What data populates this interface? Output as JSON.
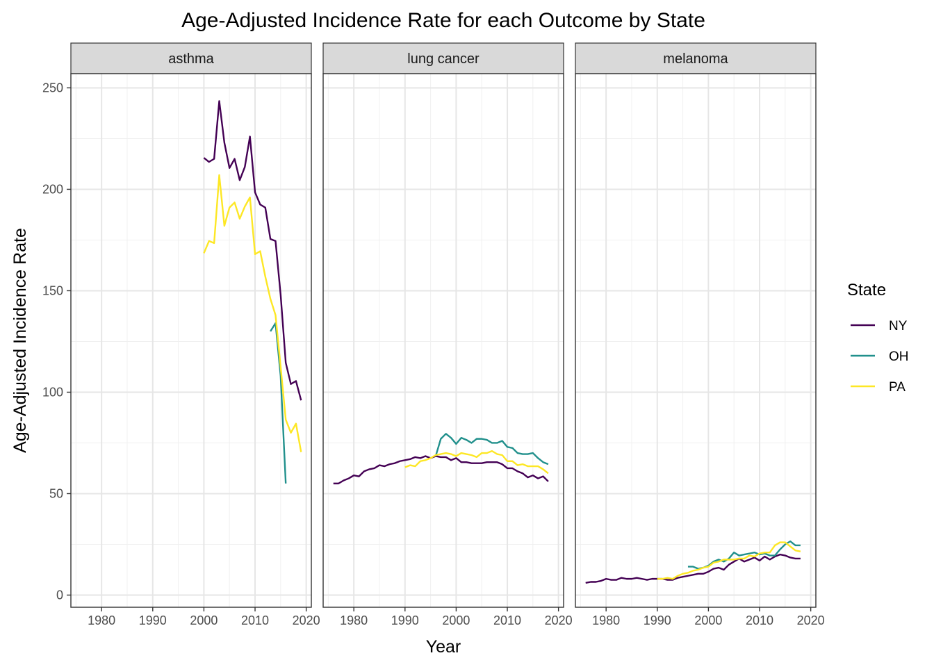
{
  "chart_data": {
    "type": "line",
    "title": "Age-Adjusted Incidence Rate for each Outcome by State",
    "xlabel": "Year",
    "ylabel": "Age-Adjusted Incidence Rate",
    "xlim": [
      1974,
      2021
    ],
    "ylim": [
      -6,
      257
    ],
    "x_ticks": [
      1980,
      1990,
      2000,
      2010,
      2020
    ],
    "y_ticks": [
      0,
      50,
      100,
      150,
      200,
      250
    ],
    "grid": true,
    "legend": {
      "title": "State",
      "position": "right",
      "entries": [
        {
          "name": "NY",
          "color": "#440154"
        },
        {
          "name": "OH",
          "color": "#21908C"
        },
        {
          "name": "PA",
          "color": "#FDE725"
        }
      ]
    },
    "panels": [
      {
        "label": "asthma",
        "series": [
          {
            "name": "NY",
            "color": "#440154",
            "x": [
              2000,
              2001,
              2002,
              2003,
              2004,
              2005,
              2006,
              2007,
              2008,
              2009,
              2010,
              2011,
              2012,
              2013,
              2014,
              2015,
              2016,
              2017,
              2018,
              2019
            ],
            "y": [
              215.5,
              213.5,
              215,
              243.5,
              223,
              210.5,
              215,
              204.5,
              211,
              226,
              198.5,
              192.5,
              191,
              175.5,
              174.5,
              148,
              114.5,
              104,
              105.5,
              96
            ]
          },
          {
            "name": "OH",
            "color": "#21908C",
            "x": [
              2013,
              2014,
              2015,
              2016
            ],
            "y": [
              130,
              134,
              108,
              55
            ]
          },
          {
            "name": "PA",
            "color": "#FDE725",
            "x": [
              2000,
              2001,
              2002,
              2003,
              2004,
              2005,
              2006,
              2007,
              2008,
              2009,
              2010,
              2011,
              2012,
              2013,
              2014,
              2015,
              2016,
              2017,
              2018,
              2019
            ],
            "y": [
              168.5,
              174.5,
              173.5,
              207,
              182,
              191,
              193.5,
              185.5,
              191.5,
              196,
              168,
              169.5,
              157,
              146,
              138,
              112.5,
              86.5,
              80,
              84.5,
              70.5
            ]
          }
        ]
      },
      {
        "label": "lung cancer",
        "series": [
          {
            "name": "NY",
            "color": "#440154",
            "x": [
              1976,
              1977,
              1978,
              1979,
              1980,
              1981,
              1982,
              1983,
              1984,
              1985,
              1986,
              1987,
              1988,
              1989,
              1990,
              1991,
              1992,
              1993,
              1994,
              1995,
              1996,
              1997,
              1998,
              1999,
              2000,
              2001,
              2002,
              2003,
              2004,
              2005,
              2006,
              2007,
              2008,
              2009,
              2010,
              2011,
              2012,
              2013,
              2014,
              2015,
              2016,
              2017,
              2018
            ],
            "y": [
              55,
              55,
              56.5,
              57.5,
              59,
              58.5,
              61,
              62,
              62.5,
              64,
              63.5,
              64.5,
              65,
              66,
              66.5,
              67,
              68,
              67.5,
              68.5,
              67.5,
              68.5,
              68,
              68,
              66.5,
              67.5,
              65.5,
              65.5,
              65,
              65,
              65,
              65.5,
              65.5,
              65.5,
              64.5,
              62.5,
              62.5,
              61,
              60,
              58,
              59,
              57.5,
              58.5,
              56
            ]
          },
          {
            "name": "OH",
            "color": "#21908C",
            "x": [
              1996,
              1997,
              1998,
              1999,
              2000,
              2001,
              2002,
              2003,
              2004,
              2005,
              2006,
              2007,
              2008,
              2009,
              2010,
              2011,
              2012,
              2013,
              2014,
              2015,
              2016,
              2017,
              2018
            ],
            "y": [
              68.5,
              77,
              79.5,
              77.5,
              74.5,
              77.5,
              76.5,
              75,
              77,
              77,
              76.5,
              75,
              75,
              76,
              73,
              72.5,
              70,
              69.5,
              69.5,
              70,
              67.5,
              65.5,
              64.5
            ]
          },
          {
            "name": "PA",
            "color": "#FDE725",
            "x": [
              1990,
              1991,
              1992,
              1993,
              1994,
              1995,
              1996,
              1997,
              1998,
              1999,
              2000,
              2001,
              2002,
              2003,
              2004,
              2005,
              2006,
              2007,
              2008,
              2009,
              2010,
              2011,
              2012,
              2013,
              2014,
              2015,
              2016,
              2017,
              2018
            ],
            "y": [
              63,
              64,
              63.5,
              66,
              66.5,
              67.5,
              69,
              69.5,
              70,
              69.5,
              68.5,
              70,
              69.5,
              69,
              68,
              70,
              70,
              71,
              69.5,
              69,
              66,
              66,
              64,
              64.5,
              63.5,
              63.5,
              63.5,
              62,
              60
            ]
          }
        ]
      },
      {
        "label": "melanoma",
        "series": [
          {
            "name": "NY",
            "color": "#440154",
            "x": [
              1976,
              1977,
              1978,
              1979,
              1980,
              1981,
              1982,
              1983,
              1984,
              1985,
              1986,
              1987,
              1988,
              1989,
              1990,
              1991,
              1992,
              1993,
              1994,
              1995,
              1996,
              1997,
              1998,
              1999,
              2000,
              2001,
              2002,
              2003,
              2004,
              2005,
              2006,
              2007,
              2008,
              2009,
              2010,
              2011,
              2012,
              2013,
              2014,
              2015,
              2016,
              2017,
              2018
            ],
            "y": [
              6,
              6.5,
              6.5,
              7,
              8,
              7.5,
              7.5,
              8.5,
              8,
              8,
              8.5,
              8,
              7.5,
              8,
              8,
              8,
              7.5,
              7.5,
              8.5,
              9,
              9.5,
              10,
              10.5,
              10.5,
              11.5,
              13,
              13.5,
              12.5,
              15,
              16.5,
              18,
              16.5,
              17.5,
              18.5,
              17,
              19,
              17.5,
              19,
              20,
              19.5,
              18.5,
              18,
              18
            ]
          },
          {
            "name": "OH",
            "color": "#21908C",
            "x": [
              1996,
              1997,
              1998,
              1999,
              2000,
              2001,
              2002,
              2003,
              2004,
              2005,
              2006,
              2007,
              2008,
              2009,
              2010,
              2011,
              2012,
              2013,
              2014,
              2015,
              2016,
              2017,
              2018
            ],
            "y": [
              14,
              14,
              13,
              13.5,
              14.5,
              16.5,
              17.5,
              16.5,
              18,
              21,
              19.5,
              20,
              20.5,
              21,
              20,
              20.5,
              19.5,
              19.5,
              22.5,
              25,
              26.5,
              24.5,
              24.5
            ]
          },
          {
            "name": "PA",
            "color": "#FDE725",
            "x": [
              1990,
              1991,
              1992,
              1993,
              1994,
              1995,
              1996,
              1997,
              1998,
              1999,
              2000,
              2001,
              2002,
              2003,
              2004,
              2005,
              2006,
              2007,
              2008,
              2009,
              2010,
              2011,
              2012,
              2013,
              2014,
              2015,
              2016,
              2017,
              2018
            ],
            "y": [
              8,
              8,
              8.5,
              8,
              9.5,
              10.5,
              11,
              12,
              12.5,
              13.5,
              14,
              16,
              16.5,
              17.5,
              17.5,
              17.5,
              18,
              18,
              19.5,
              19,
              20.5,
              21,
              21,
              24.5,
              26,
              26,
              24,
              22,
              21.5
            ]
          }
        ]
      }
    ]
  }
}
